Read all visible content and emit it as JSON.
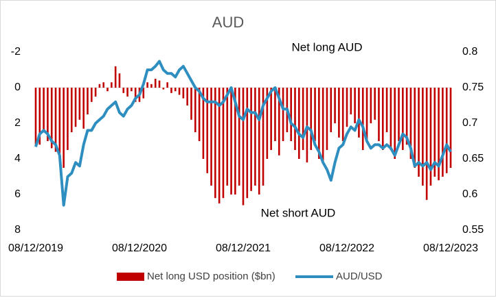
{
  "chart_data": {
    "type": "bar",
    "title": "AUD",
    "annotations": [
      "Net long AUD",
      "Net short AUD"
    ],
    "categories": [
      "08/12/2019",
      null,
      null,
      null,
      null,
      null,
      null,
      null,
      null,
      null,
      null,
      null,
      null,
      null,
      null,
      null,
      null,
      null,
      null,
      null,
      null,
      null,
      null,
      null,
      null,
      null,
      "08/12/2020",
      null,
      null,
      null,
      null,
      null,
      null,
      null,
      null,
      null,
      null,
      null,
      null,
      null,
      null,
      null,
      null,
      null,
      null,
      null,
      null,
      null,
      null,
      null,
      null,
      null,
      "08/12/2021",
      null,
      null,
      null,
      null,
      null,
      null,
      null,
      null,
      null,
      null,
      null,
      null,
      null,
      null,
      null,
      null,
      null,
      null,
      null,
      null,
      null,
      null,
      null,
      null,
      null,
      "08/12/2022",
      null,
      null,
      null,
      null,
      null,
      null,
      null,
      null,
      null,
      null,
      null,
      null,
      null,
      null,
      null,
      null,
      null,
      null,
      null,
      null,
      null,
      null,
      null,
      null,
      null,
      "08/12/2023"
    ],
    "series": [
      {
        "name": "Net long USD position ($bn)",
        "type": "bar",
        "color": "#c00000",
        "values": [
          3.2,
          3.2,
          2.5,
          3,
          3.4,
          3.6,
          4,
          4.5,
          3.5,
          2.5,
          2.2,
          1.8,
          2.3,
          1.5,
          0.8,
          0.5,
          -0.2,
          -0.3,
          0.2,
          -0.3,
          -1.2,
          -0.8,
          0.3,
          0.5,
          0.2,
          0.8,
          0.8,
          0.6,
          -0.3,
          -0.2,
          -0.5,
          -0.4,
          0.1,
          -0.3,
          0.3,
          0.2,
          0.4,
          0.6,
          1,
          1.8,
          2.5,
          3,
          4,
          4.8,
          5.5,
          6.2,
          6.5,
          6.2,
          5.5,
          6,
          6,
          5.5,
          6.6,
          6.2,
          5.8,
          5.5,
          6,
          5.5,
          4,
          3.5,
          3,
          3.8,
          3,
          2.5,
          3,
          3.5,
          4,
          3.5,
          4.2,
          3.5,
          3,
          4,
          4.2,
          3.5,
          2.5,
          2,
          2.8,
          3,
          2.2,
          1.5,
          2,
          2.8,
          3.5,
          3,
          2,
          1.8,
          3,
          3.5,
          2.5,
          3.5,
          4,
          3,
          3.5,
          3.2,
          4,
          4.5,
          5,
          5.5,
          6.3,
          5.5,
          5,
          5.2,
          5,
          4.8,
          4.5
        ]
      },
      {
        "name": "AUD/USD",
        "type": "line",
        "axis": "y2",
        "color": "#2e8ec0",
        "values": [
          0.667,
          0.685,
          0.69,
          0.685,
          0.675,
          0.67,
          0.655,
          0.585,
          0.625,
          0.63,
          0.645,
          0.64,
          0.67,
          0.69,
          0.69,
          0.7,
          0.705,
          0.71,
          0.72,
          0.725,
          0.73,
          0.715,
          0.71,
          0.72,
          0.725,
          0.735,
          0.74,
          0.755,
          0.775,
          0.775,
          0.78,
          0.787,
          0.775,
          0.77,
          0.77,
          0.765,
          0.775,
          0.78,
          0.77,
          0.76,
          0.75,
          0.745,
          0.735,
          0.73,
          0.73,
          0.73,
          0.725,
          0.73,
          0.74,
          0.75,
          0.73,
          0.71,
          0.705,
          0.72,
          0.715,
          0.715,
          0.705,
          0.725,
          0.735,
          0.745,
          0.75,
          0.735,
          0.72,
          0.72,
          0.7,
          0.695,
          0.685,
          0.68,
          0.695,
          0.69,
          0.67,
          0.66,
          0.645,
          0.635,
          0.62,
          0.645,
          0.665,
          0.67,
          0.685,
          0.695,
          0.69,
          0.705,
          0.695,
          0.675,
          0.665,
          0.67,
          0.67,
          0.665,
          0.67,
          0.665,
          0.655,
          0.67,
          0.685,
          0.68,
          0.665,
          0.64,
          0.645,
          0.64,
          0.645,
          0.635,
          0.645,
          0.64,
          0.655,
          0.67,
          0.66
        ]
      }
    ],
    "ylim": [
      -2,
      8
    ],
    "yticks": [
      -2,
      0,
      2,
      4,
      6,
      8
    ],
    "y_inverted": true,
    "y2lim": [
      0.55,
      0.8
    ],
    "y2ticks": [
      0.55,
      0.6,
      0.65,
      0.7,
      0.75,
      0.8
    ],
    "legend": "bottom"
  }
}
